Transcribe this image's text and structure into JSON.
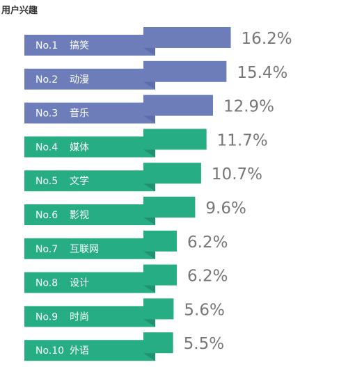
{
  "page": {
    "title": "用户兴趣"
  },
  "colors": {
    "top": "#6C7DB9",
    "top_dark": "#5A6AA3",
    "rest": "#26AD84",
    "rest_dark": "#1E8E6B",
    "value_text": "#777777"
  },
  "chart_data": {
    "type": "bar",
    "title": "用户兴趣",
    "categories": [
      "搞笑",
      "动漫",
      "音乐",
      "媒体",
      "文学",
      "影视",
      "互联网",
      "设计",
      "时尚",
      "外语"
    ],
    "ranks": [
      "No.1",
      "No.2",
      "No.3",
      "No.4",
      "No.5",
      "No.6",
      "No.7",
      "No.8",
      "No.9",
      "No.10"
    ],
    "values": [
      16.2,
      15.4,
      12.9,
      11.7,
      10.7,
      9.6,
      6.2,
      6.2,
      5.6,
      5.5
    ],
    "value_labels": [
      "16.2%",
      "15.4%",
      "12.9%",
      "11.7%",
      "10.7%",
      "9.6%",
      "6.2%",
      "6.2%",
      "5.6%",
      "5.5%"
    ],
    "unit": "%",
    "highlighted_top": 3
  }
}
